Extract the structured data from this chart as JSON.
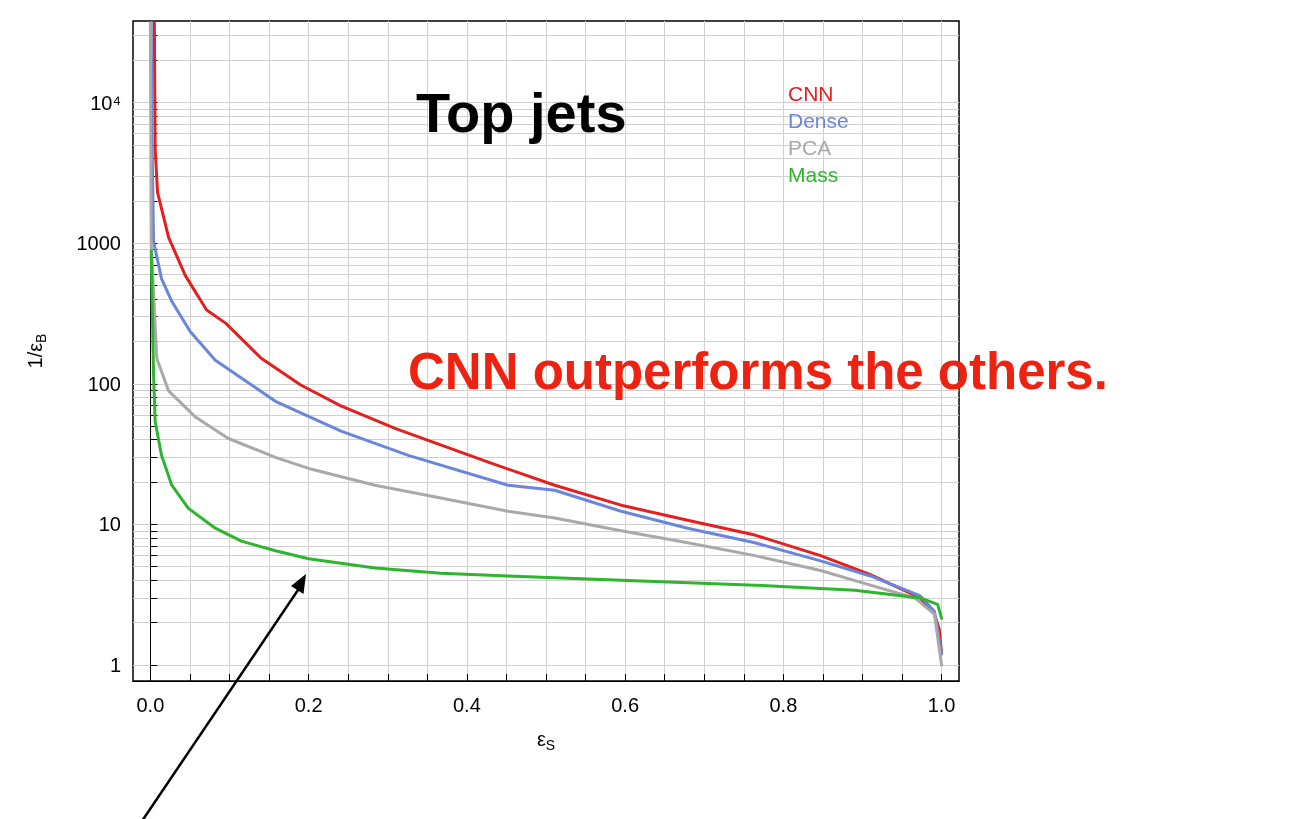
{
  "chart_data": {
    "type": "line",
    "xlabel": "ε$_{S}$",
    "ylabel": "1/ε$_{B}$",
    "annotations": [
      "Top jets",
      "CNN outperforms the others."
    ],
    "log": "y",
    "grid": true,
    "legend": "top right",
    "marker": "none",
    "line_style": "solid",
    "xlim": [
      -0.022,
      1.022
    ],
    "ylim": [
      0.77,
      38000
    ],
    "xticks": [
      {
        "value": 0,
        "label": "0.0"
      },
      {
        "value": 0.05,
        "label": null
      },
      {
        "value": 0.1,
        "label": null
      },
      {
        "value": 0.15,
        "label": null
      },
      0.2,
      {
        "value": 0.25,
        "label": null
      },
      {
        "value": 0.3,
        "label": null
      },
      {
        "value": 0.35,
        "label": null
      },
      0.4,
      {
        "value": 0.45,
        "label": null
      },
      {
        "value": 0.5,
        "label": null
      },
      {
        "value": 0.55,
        "label": null
      },
      0.6,
      {
        "value": 0.65,
        "label": null
      },
      {
        "value": 0.7,
        "label": null
      },
      {
        "value": 0.75,
        "label": null
      },
      0.8,
      {
        "value": 0.85,
        "label": null
      },
      {
        "value": 0.9,
        "label": null
      },
      {
        "value": 0.95,
        "label": null
      },
      {
        "value": 1,
        "label": "1.0"
      }
    ],
    "yticks": [
      1,
      {
        "value": 2,
        "label": null
      },
      {
        "value": 3,
        "label": null
      },
      {
        "value": 4,
        "label": null
      },
      {
        "value": 5,
        "label": null
      },
      {
        "value": 6,
        "label": null
      },
      {
        "value": 7,
        "label": null
      },
      {
        "value": 8,
        "label": null
      },
      {
        "value": 9,
        "label": null
      },
      10,
      {
        "value": 20,
        "label": null
      },
      {
        "value": 30,
        "label": null
      },
      {
        "value": 40,
        "label": null
      },
      {
        "value": 50,
        "label": null
      },
      {
        "value": 60,
        "label": null
      },
      {
        "value": 70,
        "label": null
      },
      {
        "value": 80,
        "label": null
      },
      {
        "value": 90,
        "label": null
      },
      100,
      {
        "value": 200,
        "label": null
      },
      {
        "value": 300,
        "label": null
      },
      {
        "value": 400,
        "label": null
      },
      {
        "value": 500,
        "label": null
      },
      {
        "value": 600,
        "label": null
      },
      {
        "value": 700,
        "label": null
      },
      {
        "value": 800,
        "label": null
      },
      {
        "value": 900,
        "label": null
      },
      1000,
      {
        "value": 2000,
        "label": null
      },
      {
        "value": 3000,
        "label": null
      },
      {
        "value": 4000,
        "label": null
      },
      {
        "value": 5000,
        "label": null
      },
      {
        "value": 6000,
        "label": null
      },
      {
        "value": 7000,
        "label": null
      },
      {
        "value": 8000,
        "label": null
      },
      {
        "value": 9000,
        "label": null
      },
      {
        "value": 10000,
        "label": "10⁴"
      },
      {
        "value": 20000,
        "label": null
      },
      {
        "value": 30000,
        "label": null
      }
    ],
    "series": [
      {
        "name": "CNN",
        "color": "#e3201e",
        "x": [
          0.005,
          0.006,
          0.009,
          0.023,
          0.044,
          0.071,
          0.095,
          0.14,
          0.19,
          0.24,
          0.31,
          0.427,
          0.511,
          0.595,
          0.679,
          0.764,
          0.847,
          0.91,
          0.973,
          0.991,
          0.997,
          1.0
        ],
        "values": [
          37000,
          4700,
          2300,
          1100,
          590,
          335,
          270,
          152,
          98,
          70,
          48,
          27.7,
          19,
          13.7,
          10.7,
          8.4,
          6.0,
          4.4,
          3.0,
          2.3,
          1.8,
          1.2
        ]
      },
      {
        "name": "Dense",
        "color": "#6a86dc",
        "x": [
          0.001,
          0.002,
          0.004,
          0.014,
          0.027,
          0.05,
          0.082,
          0.115,
          0.158,
          0.241,
          0.326,
          0.452,
          0.511,
          0.595,
          0.679,
          0.764,
          0.847,
          0.91,
          0.973,
          0.991,
          1.0
        ],
        "values": [
          37000,
          5300,
          1030,
          560,
          386,
          236,
          147,
          110,
          75,
          46,
          31,
          19,
          17.5,
          12.4,
          9.4,
          7.4,
          5.5,
          4.3,
          3.1,
          2.4,
          1.2
        ]
      },
      {
        "name": "PCA",
        "color": "#a9a9a9",
        "x": [
          0.0,
          0.001,
          0.002,
          0.008,
          0.023,
          0.057,
          0.098,
          0.158,
          0.2,
          0.284,
          0.367,
          0.452,
          0.511,
          0.595,
          0.679,
          0.764,
          0.847,
          0.91,
          0.966,
          0.991,
          1.0
        ],
        "values": [
          37000,
          1000,
          null,
          152,
          89,
          58,
          41,
          30,
          25,
          19,
          15.4,
          12.4,
          11.1,
          9.0,
          7.4,
          6.0,
          4.7,
          3.7,
          3.0,
          2.3,
          1.0
        ]
      },
      {
        "name": "Mass",
        "color": "#2eb52e",
        "x": [
          0.001,
          0.004,
          0.006,
          0.014,
          0.027,
          0.048,
          0.082,
          0.115,
          0.158,
          0.2,
          0.284,
          0.367,
          0.452,
          0.595,
          0.764,
          0.89,
          0.973,
          0.995,
          1.0
        ],
        "values": [
          880,
          115,
          54,
          31,
          19,
          13,
          9.4,
          7.6,
          6.5,
          5.7,
          4.9,
          4.5,
          4.3,
          4.0,
          3.7,
          3.4,
          3.0,
          2.7,
          2.15
        ]
      }
    ]
  }
}
